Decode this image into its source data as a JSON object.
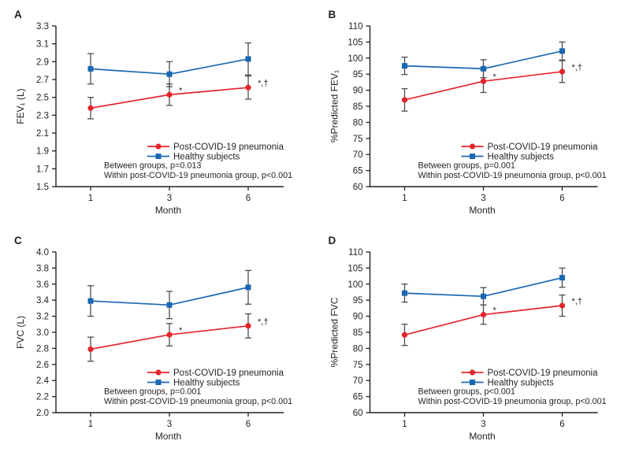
{
  "figure": {
    "legend": {
      "post_label": "Post-COVID-19 pneumonia",
      "healthy_label": "Healthy subjects"
    },
    "colors": {
      "post": "#e4252c",
      "healthy": "#1a67b2",
      "error_bar": "#4d4d4d",
      "axis": "#231f20",
      "text": "#231f20"
    }
  },
  "chart_data": [
    {
      "type": "line",
      "panel": "A",
      "ylabel": "FEV₁ (L)",
      "xlabel": "Month",
      "x": [
        1,
        3,
        6
      ],
      "ylim": [
        1.5,
        3.3
      ],
      "ytick_step": 0.2,
      "ytick_decimals": 1,
      "series": [
        {
          "name": "Post-COVID-19 pneumonia",
          "key": "post",
          "color": "#e4252c",
          "marker": "circle",
          "values": [
            2.38,
            2.53,
            2.61
          ],
          "errors": [
            0.12,
            0.12,
            0.13
          ]
        },
        {
          "name": "Healthy subjects",
          "key": "healthy",
          "color": "#1a67b2",
          "marker": "square",
          "values": [
            2.82,
            2.76,
            2.93
          ],
          "errors": [
            0.17,
            0.14,
            0.18
          ]
        }
      ],
      "annotations": [
        {
          "x": 3,
          "series": "post",
          "text": "*"
        },
        {
          "x": 6,
          "series": "post",
          "text": "*,†"
        }
      ],
      "stats": [
        "Between groups, p=0.013",
        "Within post-COVID-19 pneumonia group, p<0.001"
      ],
      "legend_position": "inside-lower-right",
      "grid": false
    },
    {
      "type": "line",
      "panel": "B",
      "ylabel": "%Predicted FEV₁",
      "xlabel": "Month",
      "x": [
        1,
        3,
        6
      ],
      "ylim": [
        60,
        110
      ],
      "ytick_step": 5,
      "ytick_decimals": 0,
      "series": [
        {
          "name": "Post-COVID-19 pneumonia",
          "key": "post",
          "color": "#e4252c",
          "marker": "circle",
          "values": [
            87,
            92.8,
            95.8
          ],
          "errors": [
            3.5,
            3.5,
            3.4
          ]
        },
        {
          "name": "Healthy subjects",
          "key": "healthy",
          "color": "#1a67b2",
          "marker": "square",
          "values": [
            97.6,
            96.7,
            102.2
          ],
          "errors": [
            2.7,
            2.8,
            2.8
          ]
        }
      ],
      "annotations": [
        {
          "x": 3,
          "series": "post",
          "text": "*"
        },
        {
          "x": 6,
          "series": "post",
          "text": "*,†"
        }
      ],
      "stats": [
        "Between groups, p=0.001",
        "Within post-COVID-19 pneumonia group, p<0.001"
      ],
      "legend_position": "inside-lower-right",
      "grid": false
    },
    {
      "type": "line",
      "panel": "C",
      "ylabel": "FVC (L)",
      "xlabel": "Month",
      "x": [
        1,
        3,
        6
      ],
      "ylim": [
        2.0,
        4.0
      ],
      "ytick_step": 0.2,
      "ytick_decimals": 1,
      "series": [
        {
          "name": "Post-COVID-19 pneumonia",
          "key": "post",
          "color": "#e4252c",
          "marker": "circle",
          "values": [
            2.79,
            2.97,
            3.08
          ],
          "errors": [
            0.15,
            0.14,
            0.15
          ]
        },
        {
          "name": "Healthy subjects",
          "key": "healthy",
          "color": "#1a67b2",
          "marker": "square",
          "values": [
            3.39,
            3.34,
            3.56
          ],
          "errors": [
            0.19,
            0.17,
            0.21
          ]
        }
      ],
      "annotations": [
        {
          "x": 3,
          "series": "post",
          "text": "*"
        },
        {
          "x": 6,
          "series": "post",
          "text": "*,†"
        }
      ],
      "stats": [
        "Between groups, p=0.001",
        "Within post-COVID-19 pneumonia group, p<0.001"
      ],
      "legend_position": "inside-lower-right",
      "grid": false
    },
    {
      "type": "line",
      "panel": "D",
      "ylabel": "%Predicted FVC",
      "xlabel": "Month",
      "x": [
        1,
        3,
        6
      ],
      "ylim": [
        60,
        110
      ],
      "ytick_step": 5,
      "ytick_decimals": 0,
      "series": [
        {
          "name": "Post-COVID-19 pneumonia",
          "key": "post",
          "color": "#e4252c",
          "marker": "circle",
          "values": [
            84.2,
            90.5,
            93.3
          ],
          "errors": [
            3.3,
            3.0,
            3.3
          ]
        },
        {
          "name": "Healthy subjects",
          "key": "healthy",
          "color": "#1a67b2",
          "marker": "square",
          "values": [
            97.2,
            96.2,
            102.0
          ],
          "errors": [
            2.8,
            2.7,
            3.0
          ]
        }
      ],
      "annotations": [
        {
          "x": 3,
          "series": "post",
          "text": "*"
        },
        {
          "x": 6,
          "series": "post",
          "text": "*,†"
        }
      ],
      "stats": [
        "Between groups, p<0.001",
        "Within post-COVID-19 pneumonia group, p<0.001"
      ],
      "legend_position": "inside-lower-right",
      "grid": false
    }
  ]
}
